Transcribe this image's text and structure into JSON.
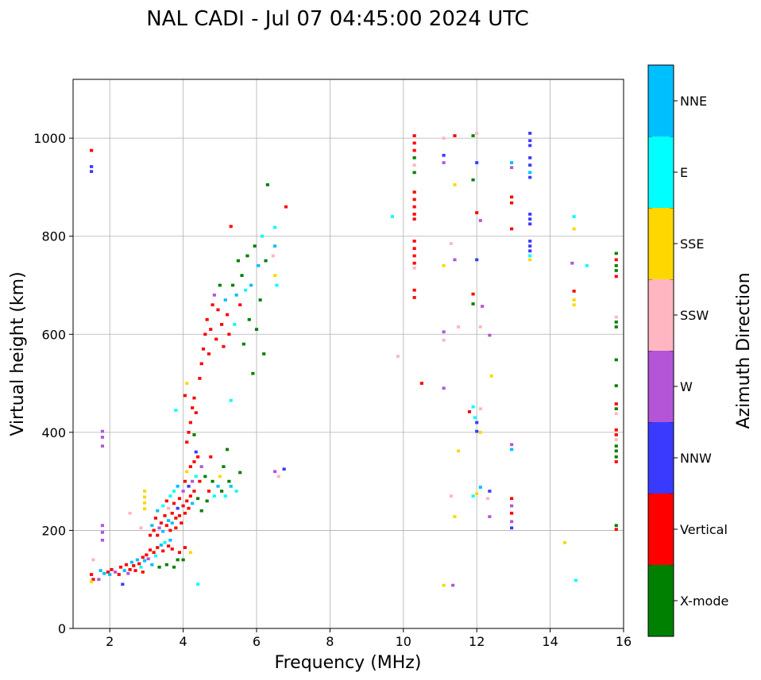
{
  "chart_data": {
    "type": "scatter",
    "title": "NAL CADI - Jul 07 04:45:00 2024 UTC",
    "xlabel": "Frequency (MHz)",
    "ylabel": "Virtual height (km)",
    "xlim": [
      1.0,
      16.0
    ],
    "ylim": [
      0,
      1120
    ],
    "xticks": [
      2,
      4,
      6,
      8,
      10,
      12,
      14,
      16
    ],
    "yticks": [
      0,
      200,
      400,
      600,
      800,
      1000
    ],
    "grid": true,
    "colorbar": {
      "title": "Azimuth Direction",
      "categories": [
        {
          "name": "X-mode",
          "color": "#008000"
        },
        {
          "name": "Vertical",
          "color": "#ff0000"
        },
        {
          "name": "NNW",
          "color": "#3a3aff"
        },
        {
          "name": "W",
          "color": "#b455d8"
        },
        {
          "name": "SSW",
          "color": "#ffb6c1"
        },
        {
          "name": "SSE",
          "color": "#ffd700"
        },
        {
          "name": "E",
          "color": "#00ffff"
        },
        {
          "name": "NNE",
          "color": "#00bfff"
        }
      ]
    },
    "cell_size": {
      "df": 0.09,
      "dh": 6
    },
    "points": [
      [
        1.5,
        975,
        "Vertical"
      ],
      [
        1.5,
        942,
        "NNW"
      ],
      [
        1.5,
        932,
        "NNW"
      ],
      [
        1.5,
        110,
        "Vertical"
      ],
      [
        1.55,
        100,
        "Vertical"
      ],
      [
        1.5,
        95,
        "SSE"
      ],
      [
        1.55,
        140,
        "SSW"
      ],
      [
        1.8,
        402,
        "W"
      ],
      [
        1.8,
        390,
        "W"
      ],
      [
        1.8,
        372,
        "W"
      ],
      [
        1.8,
        210,
        "W"
      ],
      [
        1.8,
        196,
        "W"
      ],
      [
        1.8,
        180,
        "W"
      ],
      [
        1.7,
        100,
        "W"
      ],
      [
        1.75,
        118,
        "NNE"
      ],
      [
        1.85,
        112,
        "NNE"
      ],
      [
        1.95,
        115,
        "Vertical"
      ],
      [
        2.0,
        110,
        "NNE"
      ],
      [
        2.05,
        120,
        "Vertical"
      ],
      [
        2.15,
        115,
        "W"
      ],
      [
        2.25,
        110,
        "Vertical"
      ],
      [
        2.3,
        125,
        "Vertical"
      ],
      [
        2.35,
        90,
        "NNW"
      ],
      [
        2.4,
        118,
        "NNE"
      ],
      [
        2.45,
        130,
        "Vertical"
      ],
      [
        2.5,
        112,
        "W"
      ],
      [
        2.55,
        120,
        "Vertical"
      ],
      [
        2.6,
        135,
        "NNE"
      ],
      [
        2.65,
        128,
        "Vertical"
      ],
      [
        2.7,
        118,
        "Vertical"
      ],
      [
        2.75,
        140,
        "NNE"
      ],
      [
        2.8,
        132,
        "Vertical"
      ],
      [
        2.85,
        125,
        "E"
      ],
      [
        2.9,
        145,
        "Vertical"
      ],
      [
        2.9,
        115,
        "Vertical"
      ],
      [
        2.95,
        138,
        "NNE"
      ],
      [
        3.0,
        150,
        "Vertical"
      ],
      [
        3.05,
        142,
        "W"
      ],
      [
        3.1,
        160,
        "Vertical"
      ],
      [
        3.15,
        130,
        "NNE"
      ],
      [
        3.2,
        155,
        "Vertical"
      ],
      [
        3.25,
        148,
        "E"
      ],
      [
        3.3,
        165,
        "Vertical"
      ],
      [
        3.35,
        125,
        "X-mode"
      ],
      [
        3.4,
        170,
        "NNE"
      ],
      [
        3.45,
        158,
        "Vertical"
      ],
      [
        3.5,
        175,
        "E"
      ],
      [
        3.55,
        130,
        "X-mode"
      ],
      [
        3.6,
        168,
        "Vertical"
      ],
      [
        3.65,
        180,
        "NNE"
      ],
      [
        3.7,
        162,
        "Vertical"
      ],
      [
        3.75,
        125,
        "X-mode"
      ],
      [
        3.85,
        140,
        "X-mode"
      ],
      [
        3.9,
        155,
        "Vertical"
      ],
      [
        4.0,
        140,
        "X-mode"
      ],
      [
        4.05,
        165,
        "Vertical"
      ],
      [
        4.2,
        155,
        "SSE"
      ],
      [
        4.4,
        90,
        "E"
      ],
      [
        2.95,
        280,
        "SSE"
      ],
      [
        2.95,
        268,
        "SSE"
      ],
      [
        2.95,
        256,
        "SSE"
      ],
      [
        2.95,
        244,
        "SSE"
      ],
      [
        2.55,
        235,
        "SSW"
      ],
      [
        2.85,
        205,
        "SSW"
      ],
      [
        3.1,
        190,
        "Vertical"
      ],
      [
        3.15,
        210,
        "NNE"
      ],
      [
        3.2,
        200,
        "Vertical"
      ],
      [
        3.25,
        225,
        "Vertical"
      ],
      [
        3.3,
        190,
        "Vertical"
      ],
      [
        3.3,
        240,
        "NNE"
      ],
      [
        3.35,
        205,
        "W"
      ],
      [
        3.4,
        215,
        "Vertical"
      ],
      [
        3.45,
        250,
        "E"
      ],
      [
        3.45,
        198,
        "NNE"
      ],
      [
        3.5,
        230,
        "Vertical"
      ],
      [
        3.55,
        210,
        "Vertical"
      ],
      [
        3.55,
        260,
        "Vertical"
      ],
      [
        3.6,
        220,
        "NNE"
      ],
      [
        3.6,
        245,
        "SSW"
      ],
      [
        3.65,
        200,
        "Vertical"
      ],
      [
        3.65,
        270,
        "E"
      ],
      [
        3.7,
        235,
        "Vertical"
      ],
      [
        3.7,
        215,
        "NNE"
      ],
      [
        3.75,
        255,
        "Vertical"
      ],
      [
        3.75,
        280,
        "E"
      ],
      [
        3.8,
        225,
        "Vertical"
      ],
      [
        3.8,
        205,
        "Vertical"
      ],
      [
        3.85,
        245,
        "NNW"
      ],
      [
        3.85,
        290,
        "NNE"
      ],
      [
        3.9,
        230,
        "Vertical"
      ],
      [
        3.9,
        265,
        "Vertical"
      ],
      [
        3.95,
        215,
        "Vertical"
      ],
      [
        4.0,
        250,
        "Vertical"
      ],
      [
        4.0,
        280,
        "W"
      ],
      [
        4.05,
        235,
        "Vertical"
      ],
      [
        4.05,
        300,
        "Vertical"
      ],
      [
        4.1,
        260,
        "Vertical"
      ],
      [
        4.1,
        320,
        "SSE"
      ],
      [
        4.15,
        245,
        "Vertical"
      ],
      [
        4.15,
        290,
        "NNW"
      ],
      [
        4.2,
        270,
        "Vertical"
      ],
      [
        4.2,
        330,
        "Vertical"
      ],
      [
        4.25,
        300,
        "W"
      ],
      [
        4.25,
        255,
        "NNE"
      ],
      [
        4.3,
        340,
        "Vertical"
      ],
      [
        4.3,
        280,
        "Vertical"
      ],
      [
        4.35,
        360,
        "NNW"
      ],
      [
        4.35,
        310,
        "E"
      ],
      [
        4.4,
        265,
        "X-mode"
      ],
      [
        4.4,
        350,
        "Vertical"
      ],
      [
        4.45,
        300,
        "Vertical"
      ],
      [
        4.5,
        240,
        "X-mode"
      ],
      [
        4.5,
        330,
        "W"
      ],
      [
        4.6,
        310,
        "X-mode"
      ],
      [
        4.65,
        260,
        "X-mode"
      ],
      [
        4.7,
        280,
        "Vertical"
      ],
      [
        4.75,
        350,
        "Vertical"
      ],
      [
        4.8,
        300,
        "X-mode"
      ],
      [
        4.85,
        270,
        "E"
      ],
      [
        4.95,
        290,
        "NNE"
      ],
      [
        5.0,
        310,
        "SSE"
      ],
      [
        5.05,
        280,
        "X-mode"
      ],
      [
        5.1,
        330,
        "X-mode"
      ],
      [
        5.15,
        270,
        "E"
      ],
      [
        5.2,
        365,
        "X-mode"
      ],
      [
        5.25,
        300,
        "X-mode"
      ],
      [
        5.3,
        290,
        "NNE"
      ],
      [
        5.45,
        280,
        "E"
      ],
      [
        5.55,
        318,
        "X-mode"
      ],
      [
        4.1,
        380,
        "Vertical"
      ],
      [
        4.15,
        400,
        "Vertical"
      ],
      [
        4.2,
        420,
        "Vertical"
      ],
      [
        4.25,
        450,
        "Vertical"
      ],
      [
        4.3,
        470,
        "Vertical"
      ],
      [
        4.35,
        440,
        "Vertical"
      ],
      [
        4.3,
        395,
        "X-mode"
      ],
      [
        4.05,
        475,
        "Vertical"
      ],
      [
        4.1,
        500,
        "SSE"
      ],
      [
        3.8,
        445,
        "E"
      ],
      [
        4.45,
        510,
        "Vertical"
      ],
      [
        4.5,
        540,
        "Vertical"
      ],
      [
        4.55,
        570,
        "Vertical"
      ],
      [
        4.6,
        600,
        "Vertical"
      ],
      [
        4.65,
        630,
        "Vertical"
      ],
      [
        4.7,
        560,
        "Vertical"
      ],
      [
        4.75,
        610,
        "Vertical"
      ],
      [
        4.8,
        660,
        "Vertical"
      ],
      [
        4.85,
        680,
        "W"
      ],
      [
        4.9,
        590,
        "Vertical"
      ],
      [
        4.95,
        650,
        "Vertical"
      ],
      [
        5.0,
        700,
        "X-mode"
      ],
      [
        5.05,
        620,
        "Vertical"
      ],
      [
        5.1,
        575,
        "Vertical"
      ],
      [
        5.15,
        670,
        "NNE"
      ],
      [
        5.2,
        640,
        "Vertical"
      ],
      [
        5.25,
        600,
        "Vertical"
      ],
      [
        5.3,
        465,
        "E"
      ],
      [
        5.35,
        700,
        "X-mode"
      ],
      [
        5.4,
        620,
        "E"
      ],
      [
        5.45,
        680,
        "NNE"
      ],
      [
        5.5,
        750,
        "X-mode"
      ],
      [
        5.55,
        660,
        "Vertical"
      ],
      [
        5.6,
        720,
        "X-mode"
      ],
      [
        5.65,
        580,
        "X-mode"
      ],
      [
        5.7,
        690,
        "E"
      ],
      [
        5.75,
        760,
        "X-mode"
      ],
      [
        5.8,
        630,
        "X-mode"
      ],
      [
        5.85,
        700,
        "NNE"
      ],
      [
        5.9,
        520,
        "X-mode"
      ],
      [
        5.95,
        780,
        "X-mode"
      ],
      [
        6.0,
        610,
        "X-mode"
      ],
      [
        6.05,
        740,
        "NNE"
      ],
      [
        6.1,
        670,
        "X-mode"
      ],
      [
        6.15,
        800,
        "E"
      ],
      [
        6.2,
        560,
        "X-mode"
      ],
      [
        6.25,
        750,
        "X-mode"
      ],
      [
        6.3,
        905,
        "X-mode"
      ],
      [
        6.5,
        818,
        "E"
      ],
      [
        6.5,
        780,
        "NNE"
      ],
      [
        6.45,
        760,
        "SSW"
      ],
      [
        6.5,
        720,
        "SSE"
      ],
      [
        6.55,
        700,
        "E"
      ],
      [
        6.8,
        860,
        "Vertical"
      ],
      [
        5.3,
        820,
        "Vertical"
      ],
      [
        6.5,
        320,
        "W"
      ],
      [
        6.6,
        310,
        "SSW"
      ],
      [
        6.75,
        325,
        "NNW"
      ],
      [
        10.3,
        1005,
        "Vertical"
      ],
      [
        10.3,
        990,
        "Vertical"
      ],
      [
        10.3,
        975,
        "Vertical"
      ],
      [
        10.3,
        960,
        "X-mode"
      ],
      [
        10.3,
        945,
        "SSW"
      ],
      [
        10.3,
        930,
        "X-mode"
      ],
      [
        10.3,
        890,
        "Vertical"
      ],
      [
        10.3,
        875,
        "Vertical"
      ],
      [
        10.3,
        860,
        "Vertical"
      ],
      [
        10.3,
        845,
        "Vertical"
      ],
      [
        10.3,
        835,
        "Vertical"
      ],
      [
        10.3,
        790,
        "Vertical"
      ],
      [
        10.3,
        775,
        "Vertical"
      ],
      [
        10.3,
        760,
        "Vertical"
      ],
      [
        10.3,
        745,
        "Vertical"
      ],
      [
        10.3,
        735,
        "SSW"
      ],
      [
        10.3,
        690,
        "Vertical"
      ],
      [
        10.3,
        675,
        "Vertical"
      ],
      [
        9.7,
        840,
        "E"
      ],
      [
        9.85,
        555,
        "SSW"
      ],
      [
        10.5,
        500,
        "Vertical"
      ],
      [
        11.1,
        1000,
        "SSW"
      ],
      [
        11.1,
        965,
        "NNW"
      ],
      [
        11.1,
        950,
        "W"
      ],
      [
        11.4,
        1005,
        "Vertical"
      ],
      [
        11.4,
        905,
        "SSE"
      ],
      [
        11.1,
        740,
        "SSE"
      ],
      [
        11.3,
        785,
        "SSW"
      ],
      [
        11.4,
        752,
        "W"
      ],
      [
        11.1,
        605,
        "W"
      ],
      [
        11.1,
        588,
        "SSW"
      ],
      [
        11.5,
        615,
        "SSW"
      ],
      [
        11.1,
        490,
        "W"
      ],
      [
        11.3,
        270,
        "SSW"
      ],
      [
        11.4,
        228,
        "SSE"
      ],
      [
        11.5,
        362,
        "SSE"
      ],
      [
        11.1,
        88,
        "SSE"
      ],
      [
        11.35,
        88,
        "W"
      ],
      [
        11.9,
        1005,
        "X-mode"
      ],
      [
        12.0,
        1010,
        "SSW"
      ],
      [
        11.9,
        915,
        "X-mode"
      ],
      [
        12.0,
        950,
        "NNW"
      ],
      [
        12.0,
        848,
        "Vertical"
      ],
      [
        12.1,
        832,
        "W"
      ],
      [
        12.0,
        752,
        "NNW"
      ],
      [
        11.9,
        682,
        "Vertical"
      ],
      [
        11.9,
        662,
        "X-mode"
      ],
      [
        12.15,
        657,
        "W"
      ],
      [
        12.1,
        615,
        "SSW"
      ],
      [
        11.8,
        442,
        "Vertical"
      ],
      [
        11.9,
        452,
        "E"
      ],
      [
        11.95,
        430,
        "E"
      ],
      [
        12.0,
        420,
        "NNW"
      ],
      [
        12.0,
        402,
        "NNW"
      ],
      [
        12.1,
        400,
        "SSE"
      ],
      [
        12.1,
        448,
        "SSW"
      ],
      [
        11.9,
        270,
        "E"
      ],
      [
        12.0,
        275,
        "SSE"
      ],
      [
        12.1,
        288,
        "NNE"
      ],
      [
        12.35,
        598,
        "W"
      ],
      [
        12.4,
        515,
        "SSE"
      ],
      [
        12.35,
        280,
        "NNW"
      ],
      [
        12.35,
        228,
        "W"
      ],
      [
        12.3,
        265,
        "SSW"
      ],
      [
        12.95,
        950,
        "NNE"
      ],
      [
        12.95,
        940,
        "W"
      ],
      [
        12.95,
        880,
        "Vertical"
      ],
      [
        12.95,
        868,
        "Vertical"
      ],
      [
        12.95,
        815,
        "Vertical"
      ],
      [
        12.95,
        375,
        "W"
      ],
      [
        12.95,
        365,
        "NNE"
      ],
      [
        12.95,
        265,
        "Vertical"
      ],
      [
        12.95,
        250,
        "W"
      ],
      [
        12.95,
        235,
        "Vertical"
      ],
      [
        12.95,
        218,
        "W"
      ],
      [
        12.95,
        205,
        "NNW"
      ],
      [
        13.45,
        1010,
        "NNW"
      ],
      [
        13.45,
        995,
        "NNW"
      ],
      [
        13.45,
        985,
        "NNW"
      ],
      [
        13.45,
        960,
        "NNW"
      ],
      [
        13.45,
        945,
        "NNW"
      ],
      [
        13.45,
        930,
        "NNE"
      ],
      [
        13.45,
        920,
        "NNW"
      ],
      [
        13.45,
        845,
        "NNW"
      ],
      [
        13.45,
        835,
        "NNW"
      ],
      [
        13.45,
        825,
        "NNW"
      ],
      [
        13.45,
        790,
        "NNW"
      ],
      [
        13.45,
        780,
        "NNW"
      ],
      [
        13.45,
        770,
        "NNW"
      ],
      [
        13.45,
        760,
        "E"
      ],
      [
        13.45,
        752,
        "SSE"
      ],
      [
        14.65,
        840,
        "E"
      ],
      [
        14.65,
        815,
        "SSE"
      ],
      [
        14.6,
        745,
        "W"
      ],
      [
        14.65,
        688,
        "Vertical"
      ],
      [
        14.65,
        670,
        "SSE"
      ],
      [
        14.65,
        660,
        "SSE"
      ],
      [
        15.0,
        740,
        "E"
      ],
      [
        14.4,
        175,
        "SSE"
      ],
      [
        14.7,
        98,
        "E"
      ],
      [
        15.8,
        765,
        "X-mode"
      ],
      [
        15.8,
        752,
        "Vertical"
      ],
      [
        15.8,
        740,
        "X-mode"
      ],
      [
        15.8,
        730,
        "X-mode"
      ],
      [
        15.8,
        718,
        "Vertical"
      ],
      [
        15.8,
        635,
        "SSW"
      ],
      [
        15.8,
        625,
        "X-mode"
      ],
      [
        15.8,
        615,
        "X-mode"
      ],
      [
        15.8,
        548,
        "X-mode"
      ],
      [
        15.8,
        495,
        "X-mode"
      ],
      [
        15.8,
        458,
        "Vertical"
      ],
      [
        15.8,
        448,
        "X-mode"
      ],
      [
        15.8,
        438,
        "SSW"
      ],
      [
        15.8,
        405,
        "Vertical"
      ],
      [
        15.8,
        395,
        "Vertical"
      ],
      [
        15.8,
        385,
        "SSW"
      ],
      [
        15.8,
        372,
        "X-mode"
      ],
      [
        15.8,
        362,
        "X-mode"
      ],
      [
        15.8,
        350,
        "X-mode"
      ],
      [
        15.8,
        340,
        "Vertical"
      ],
      [
        15.8,
        210,
        "X-mode"
      ],
      [
        15.8,
        202,
        "Vertical"
      ]
    ]
  }
}
